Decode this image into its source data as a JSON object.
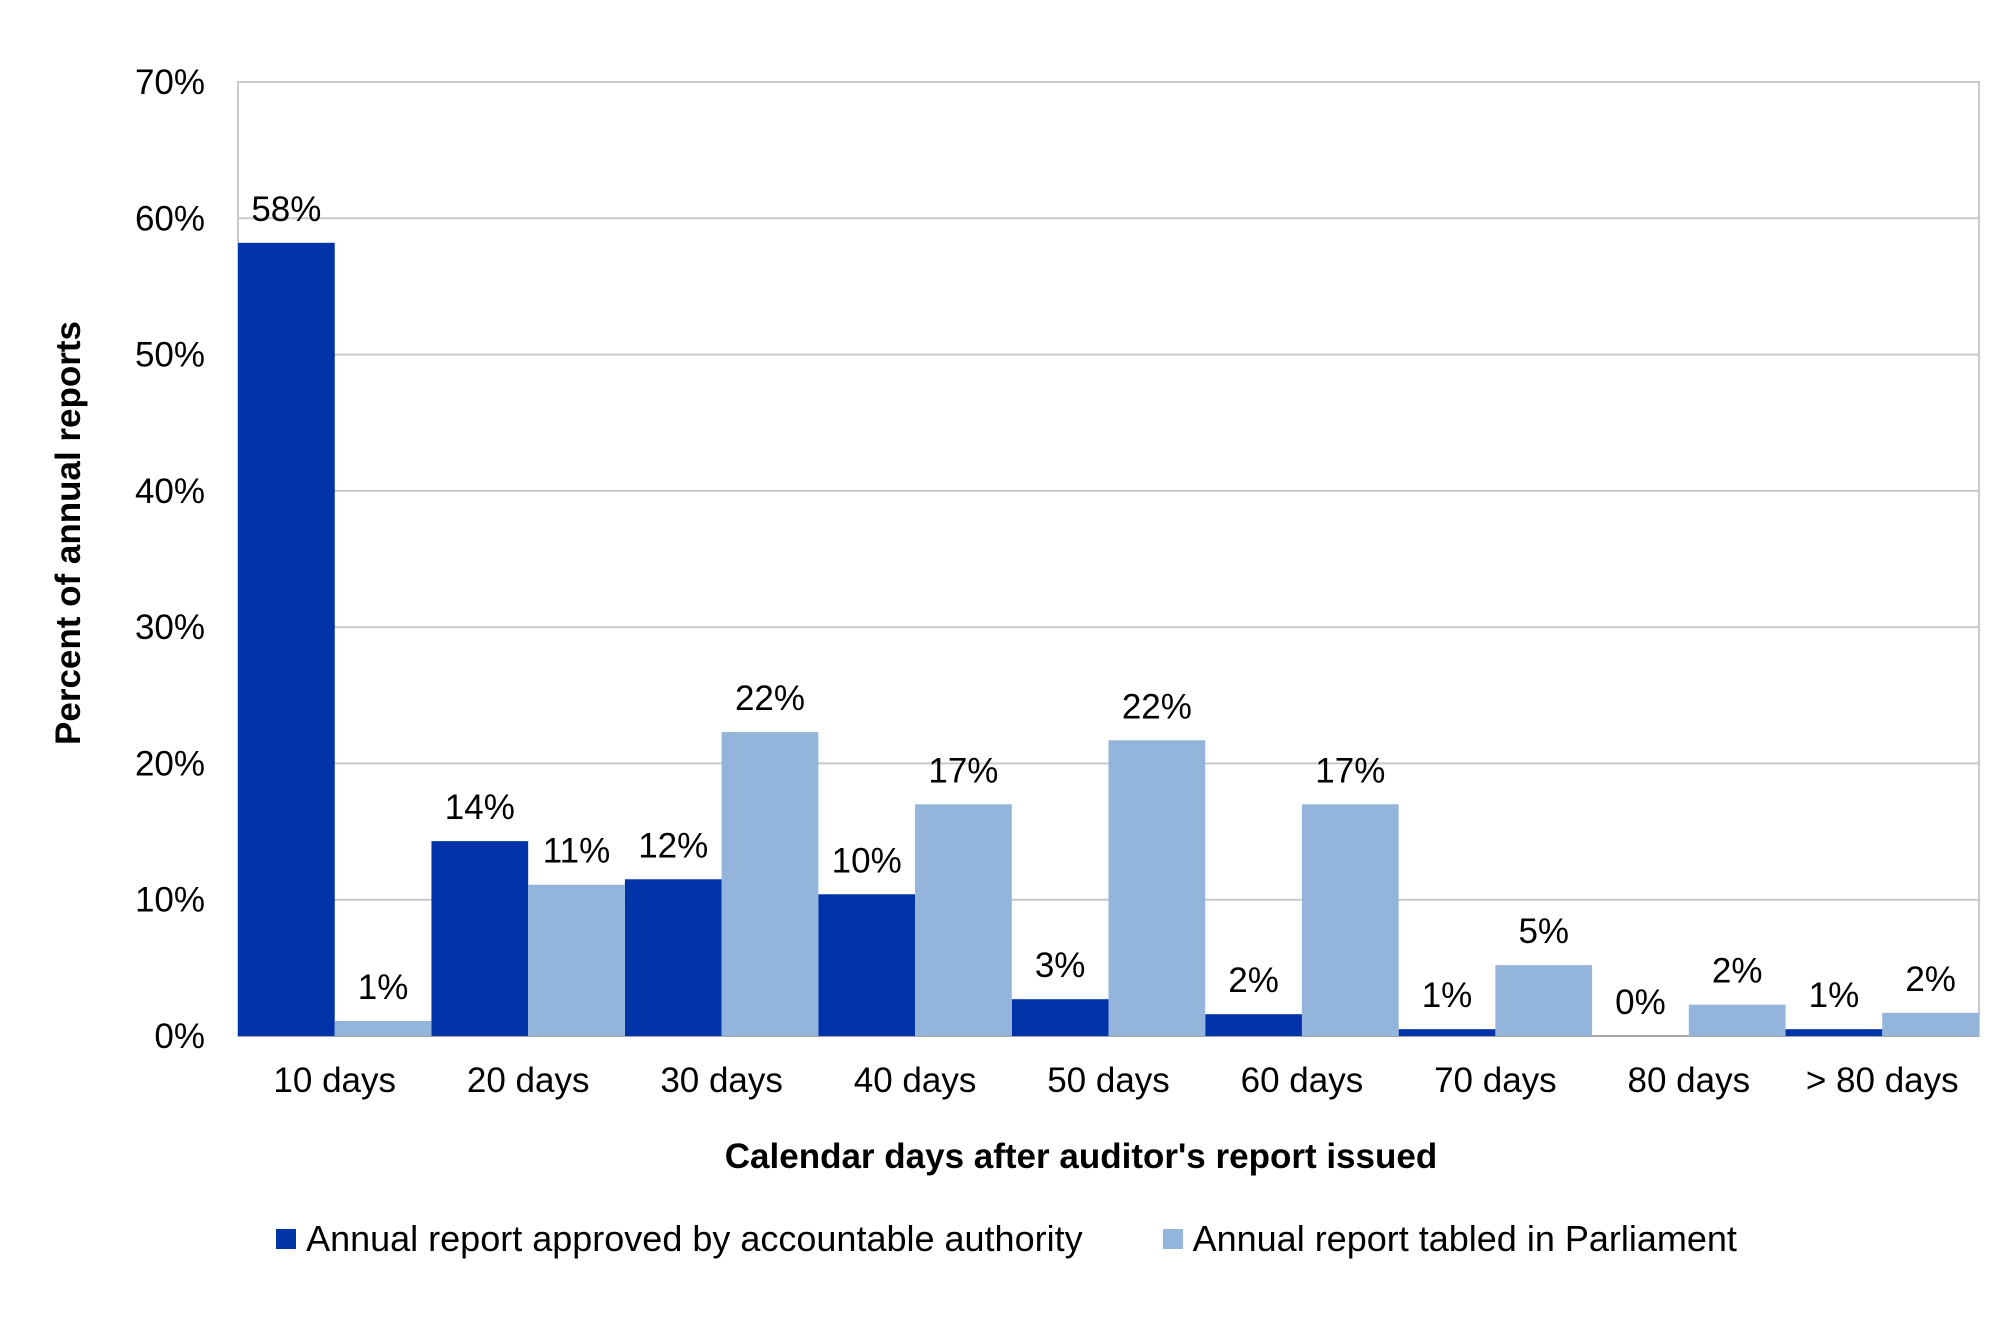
{
  "chart_data": {
    "type": "bar",
    "title": "",
    "xlabel": "Calendar days after auditor's report issued",
    "ylabel": "Percent of annual reports",
    "categories": [
      "10 days",
      "20 days",
      "30 days",
      "40 days",
      "50 days",
      "60 days",
      "70 days",
      "80 days",
      "> 80 days"
    ],
    "series": [
      {
        "name": "Annual report approved by accountable authority",
        "color": "#0033A8",
        "values": [
          58.2,
          14.3,
          11.5,
          10.4,
          2.7,
          1.6,
          0.5,
          0.0,
          0.5
        ],
        "labels": [
          "58%",
          "14%",
          "12%",
          "10%",
          "3%",
          "2%",
          "1%",
          "0%",
          "1%"
        ]
      },
      {
        "name": "Annual report tabled in Parliament",
        "color": "#93B4DB",
        "values": [
          1.1,
          11.1,
          22.3,
          17.0,
          21.7,
          17.0,
          5.2,
          2.3,
          1.7
        ],
        "labels": [
          "1%",
          "11%",
          "22%",
          "17%",
          "22%",
          "17%",
          "5%",
          "2%",
          "2%"
        ]
      }
    ],
    "ylim": [
      0,
      70
    ],
    "yticks": [
      0,
      10,
      20,
      30,
      40,
      50,
      60,
      70
    ],
    "ytick_labels": [
      "0%",
      "10%",
      "20%",
      "30%",
      "40%",
      "50%",
      "60%",
      "70%"
    ],
    "grid": true,
    "legend_position": "bottom"
  }
}
